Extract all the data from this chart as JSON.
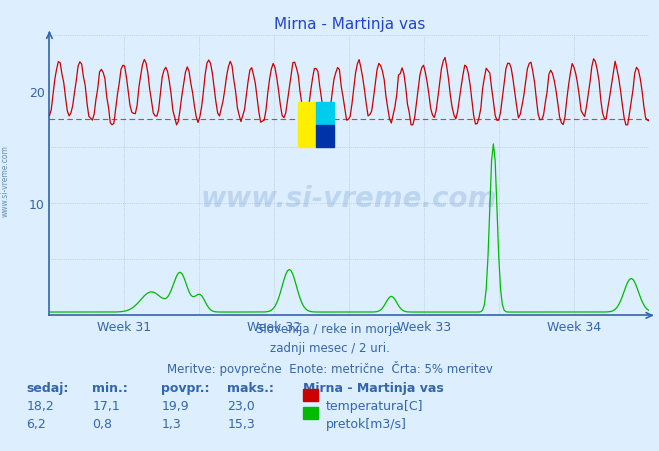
{
  "title": "Mirna - Martinja vas",
  "background_color": "#ddeeff",
  "plot_bg_color": "#ddeeff",
  "grid_color": "#aabbcc",
  "temp_color": "#cc0000",
  "flow_color": "#00bb00",
  "dashed_line_color": "#cc4444",
  "axis_color": "#3366aa",
  "text_color": "#3366aa",
  "n_points": 336,
  "temp_min": 17.1,
  "temp_max": 23.0,
  "temp_avg": 19.9,
  "dashed_line_y": 17.5,
  "flow_max": 15.3,
  "ylim_max": 25,
  "ytick_positions": [
    10,
    20
  ],
  "ytick_labels": [
    "10",
    "20"
  ],
  "x_tick_labels": [
    "Week 31",
    "Week 32",
    "Week 33",
    "Week 34"
  ],
  "footer_line1": "Slovenija / reke in morje.",
  "footer_line2": "zadnji mesec / 2 uri.",
  "footer_line3": "Meritve: povprečne  Enote: metrične  Črta: 5% meritev",
  "legend_title": "Mirna - Martinja vas",
  "legend_temp": "temperatura[C]",
  "legend_flow": "pretok[m3/s]",
  "stat_headers": [
    "sedaj:",
    "min.:",
    "povpr.:",
    "maks.:"
  ],
  "stat_temp": [
    "18,2",
    "17,1",
    "19,9",
    "23,0"
  ],
  "stat_flow": [
    "6,2",
    "0,8",
    "1,3",
    "15,3"
  ],
  "logo_colors": [
    "#ffee00",
    "#00ccee",
    "#0033aa"
  ],
  "watermark_color": "#3366aa",
  "side_text_color": "#336699"
}
